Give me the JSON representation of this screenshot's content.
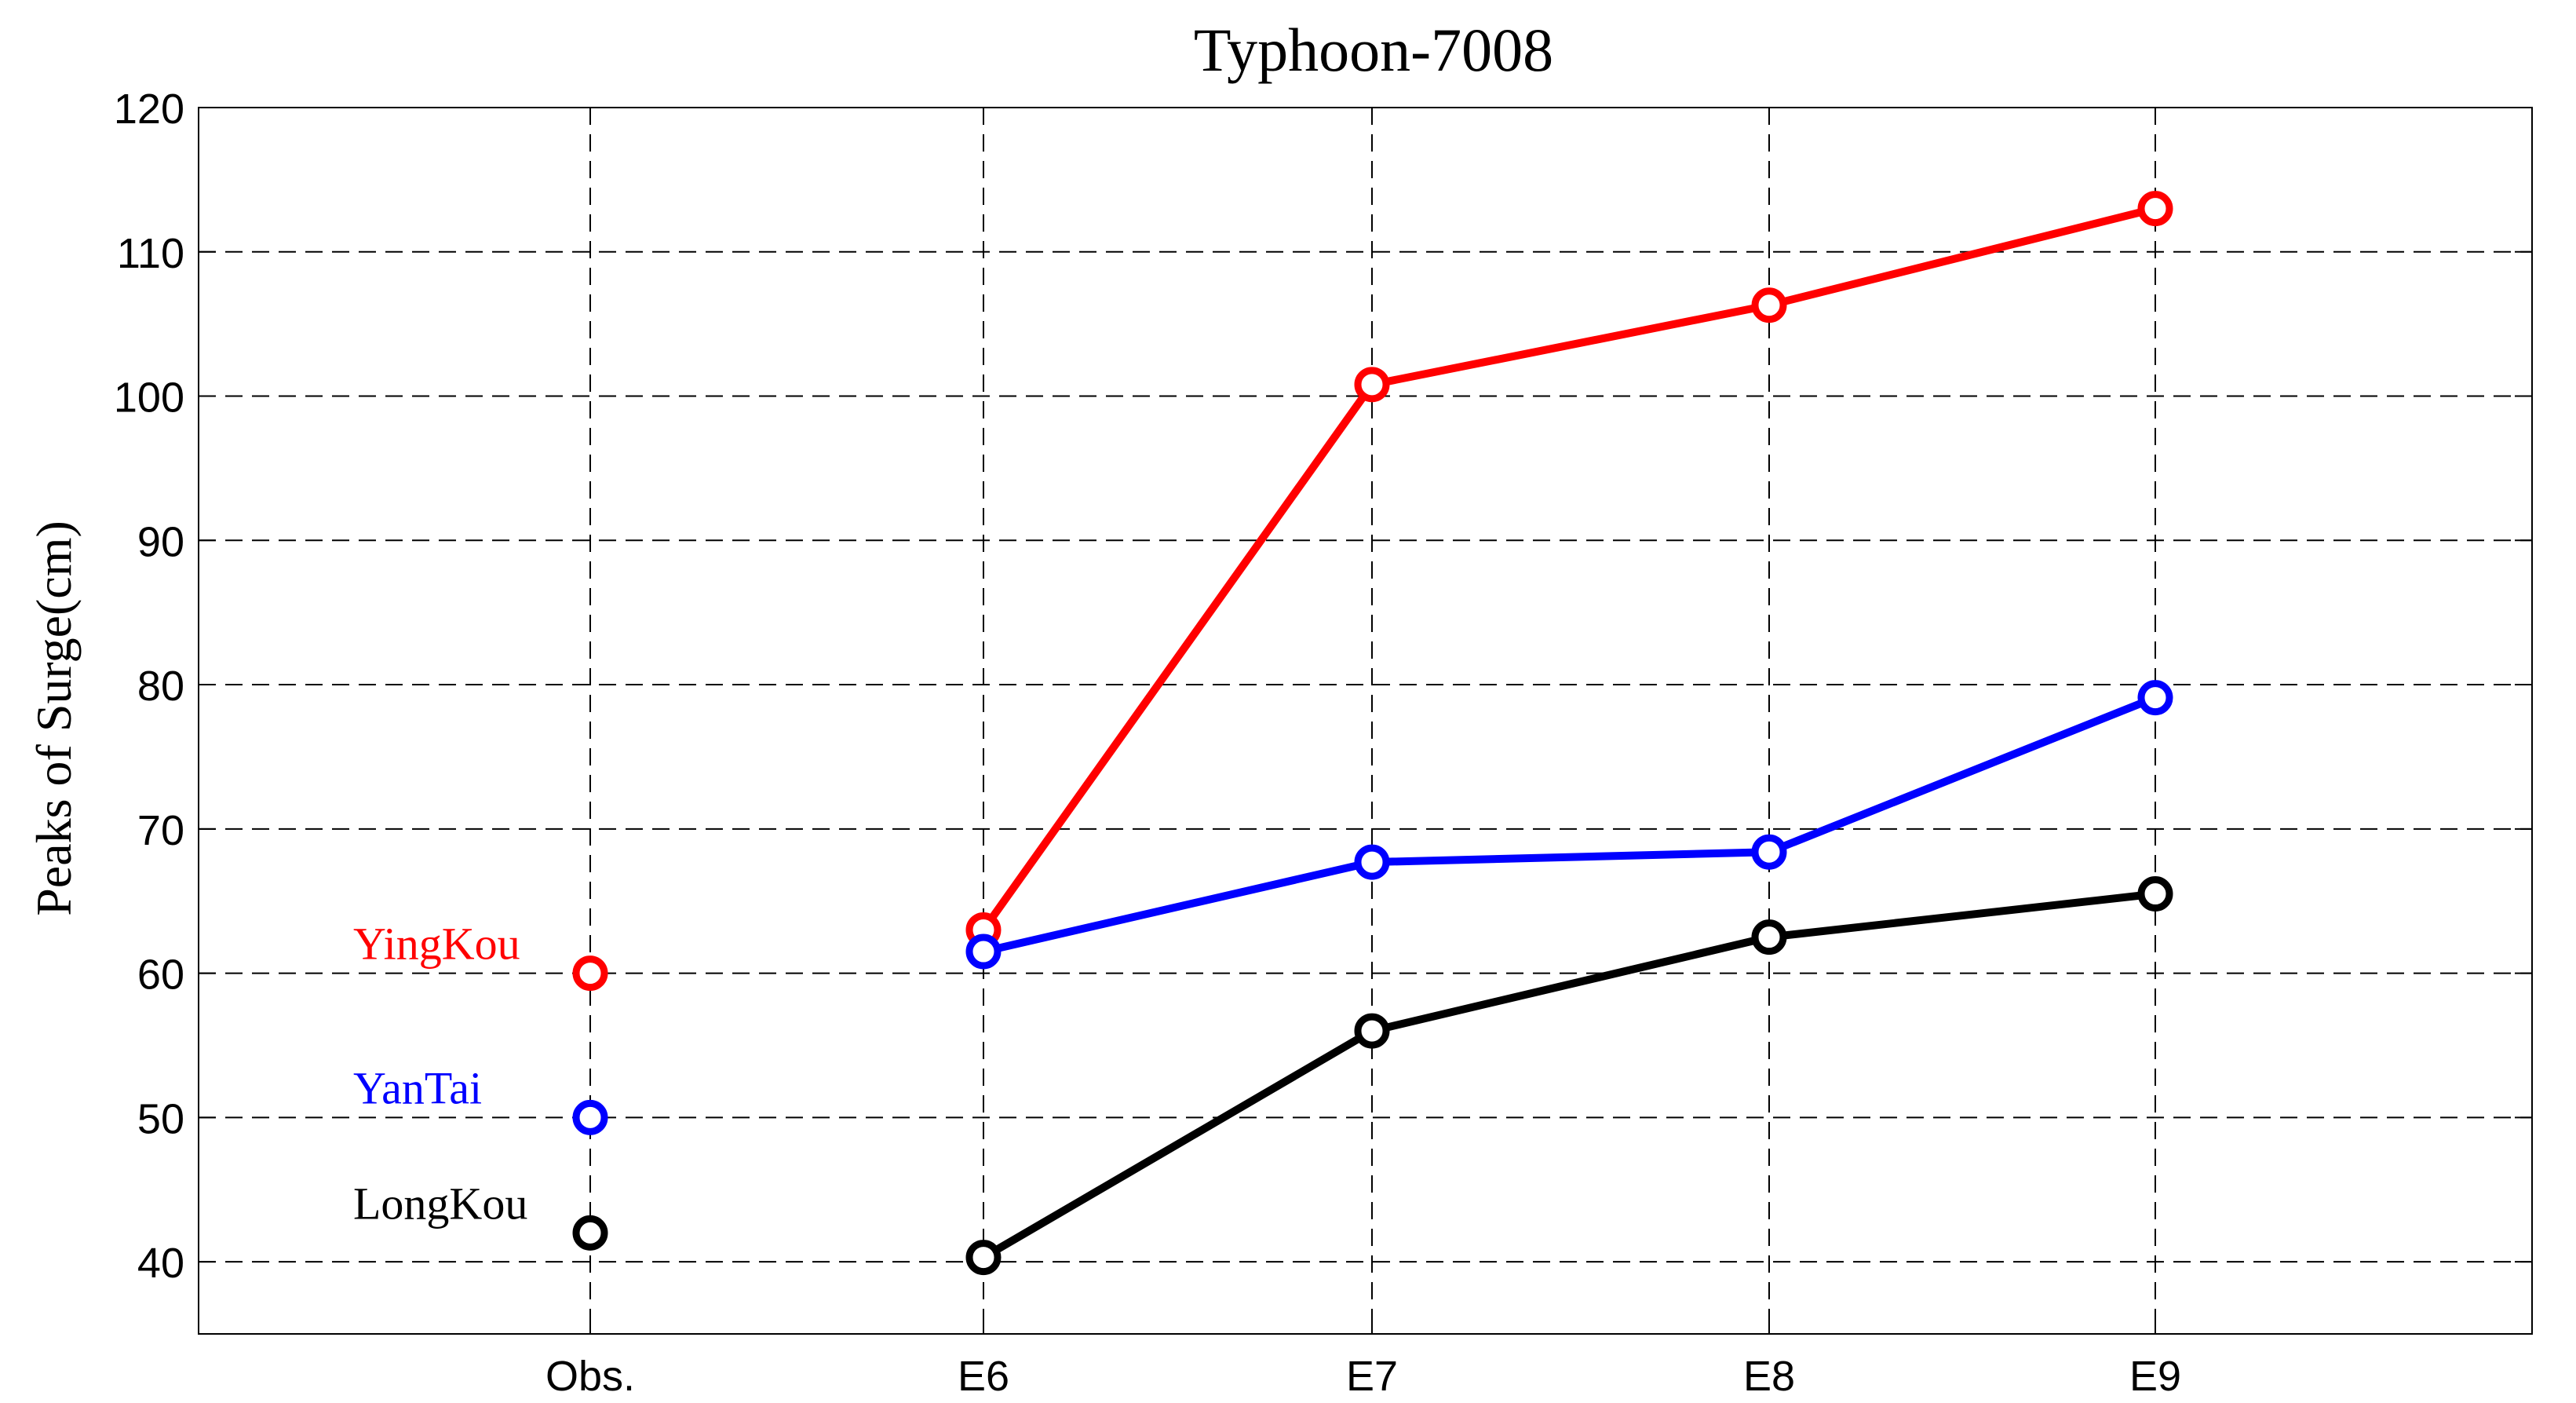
{
  "chart_data": {
    "type": "line",
    "title": "Typhoon-7008",
    "xlabel": "",
    "ylabel": "Peaks of Surge(cm)",
    "categories": [
      "Obs.",
      "E6",
      "E7",
      "E8",
      "E9"
    ],
    "yticks": [
      40,
      50,
      60,
      70,
      80,
      90,
      100,
      110,
      120
    ],
    "ylim": [
      35,
      120
    ],
    "grid": true,
    "series": [
      {
        "name": "YingKou",
        "color": "#ff0000",
        "observed": 60,
        "values": [
          null,
          63,
          100.8,
          106.3,
          113
        ]
      },
      {
        "name": "YanTai",
        "color": "#0000ff",
        "observed": 50,
        "values": [
          null,
          61.5,
          67.7,
          68.4,
          79.1
        ]
      },
      {
        "name": "LongKou",
        "color": "#000000",
        "observed": 42,
        "values": [
          null,
          40.3,
          56,
          62.5,
          65.5
        ]
      }
    ]
  }
}
